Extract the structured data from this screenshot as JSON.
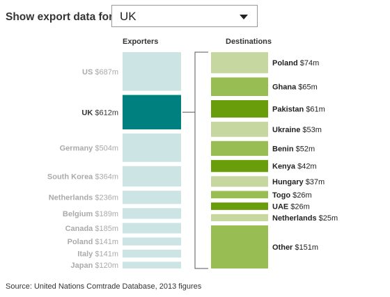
{
  "control": {
    "label": "Show export data for:",
    "selected": "UK"
  },
  "colors": {
    "exporter_highlight": "#00807e",
    "exporter_faded": "#cde4e5",
    "exporter_label_faded": "#aaaaaa",
    "destination_light": "#c6d89f",
    "destination_mid": "#98bd53",
    "destination_dark": "#6a9d0a"
  },
  "chart_data": {
    "type": "bar",
    "exporters_header": "Exporters",
    "destinations_header": "Destinations",
    "exporters": [
      {
        "name": "US",
        "value_label": "$687m",
        "value": 687,
        "selected": false
      },
      {
        "name": "UK",
        "value_label": "$612m",
        "value": 612,
        "selected": true
      },
      {
        "name": "Germany",
        "value_label": "$504m",
        "value": 504,
        "selected": false
      },
      {
        "name": "South Korea",
        "value_label": "$364m",
        "value": 364,
        "selected": false
      },
      {
        "name": "Netherlands",
        "value_label": "$236m",
        "value": 236,
        "selected": false
      },
      {
        "name": "Belgium",
        "value_label": "$189m",
        "value": 189,
        "selected": false
      },
      {
        "name": "Canada",
        "value_label": "$185m",
        "value": 185,
        "selected": false
      },
      {
        "name": "Poland",
        "value_label": "$141m",
        "value": 141,
        "selected": false
      },
      {
        "name": "Italy",
        "value_label": "$141m",
        "value": 141,
        "selected": false
      },
      {
        "name": "Japan",
        "value_label": "$120m",
        "value": 120,
        "selected": false
      }
    ],
    "destinations": [
      {
        "name": "Poland",
        "value_label": "$74m",
        "value": 74,
        "shade": "light"
      },
      {
        "name": "Ghana",
        "value_label": "$65m",
        "value": 65,
        "shade": "mid"
      },
      {
        "name": "Pakistan",
        "value_label": "$61m",
        "value": 61,
        "shade": "dark"
      },
      {
        "name": "Ukraine",
        "value_label": "$53m",
        "value": 53,
        "shade": "light"
      },
      {
        "name": "Benin",
        "value_label": "$52m",
        "value": 52,
        "shade": "mid"
      },
      {
        "name": "Kenya",
        "value_label": "$42m",
        "value": 42,
        "shade": "dark"
      },
      {
        "name": "Hungary",
        "value_label": "$37m",
        "value": 37,
        "shade": "light"
      },
      {
        "name": "Togo",
        "value_label": "$26m",
        "value": 26,
        "shade": "mid"
      },
      {
        "name": "UAE",
        "value_label": "$26m",
        "value": 26,
        "shade": "dark"
      },
      {
        "name": "Netherlands",
        "value_label": "$25m",
        "value": 25,
        "shade": "light"
      },
      {
        "name": "Other",
        "value_label": "$151m",
        "value": 151,
        "shade": "mid"
      }
    ]
  },
  "footer": {
    "source": "Source: United Nations Comtrade Database, 2013 figures"
  }
}
